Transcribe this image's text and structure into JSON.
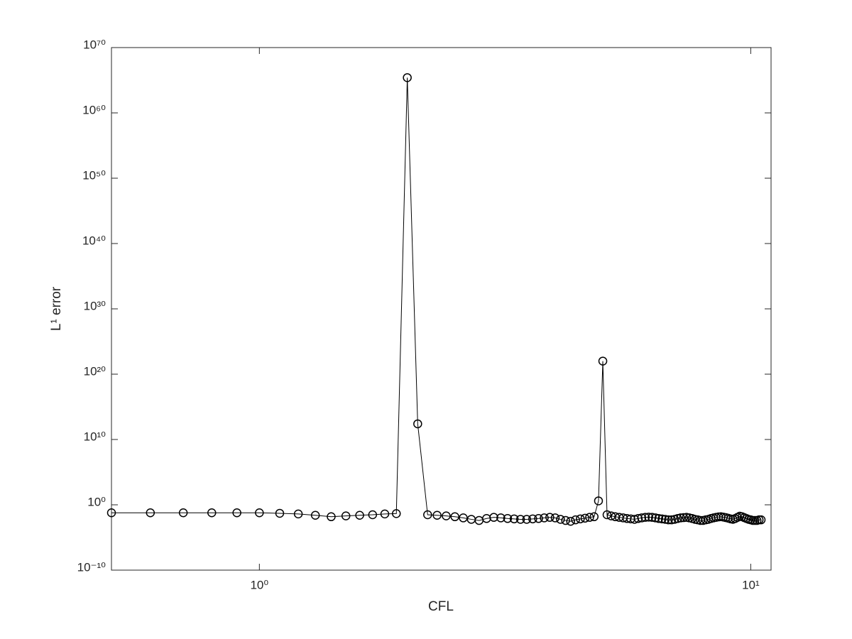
{
  "chart_data": {
    "type": "line",
    "xlabel": "CFL",
    "ylabel": "L¹ error",
    "xscale": "log",
    "yscale": "log",
    "color": "#000000",
    "marker": "o",
    "xlim": [
      0.5,
      11
    ],
    "ylim": [
      1e-10,
      1e+70
    ],
    "xticks": [
      {
        "value": 1,
        "label": "10⁰"
      },
      {
        "value": 10,
        "label": "10¹"
      }
    ],
    "yticks": [
      {
        "value": 1e-10,
        "label": "10⁻¹⁰"
      },
      {
        "value": 1,
        "label": "10⁰"
      },
      {
        "value": 10000000000.0,
        "label": "10¹⁰"
      },
      {
        "value": 1e+20,
        "label": "10²⁰"
      },
      {
        "value": 1e+30,
        "label": "10³⁰"
      },
      {
        "value": 1e+40,
        "label": "10⁴⁰"
      },
      {
        "value": 1e+50,
        "label": "10⁵⁰"
      },
      {
        "value": 1e+60,
        "label": "10⁶⁰"
      },
      {
        "value": 1e+70,
        "label": "10⁷⁰"
      }
    ],
    "x": [
      0.5,
      0.6,
      0.7,
      0.8,
      0.9,
      1.0,
      1.1,
      1.2,
      1.3,
      1.4,
      1.5,
      1.6,
      1.7,
      1.8,
      1.9,
      2.0,
      2.1,
      2.2,
      2.3,
      2.4,
      2.5,
      2.6,
      2.7,
      2.8,
      2.9,
      3.0,
      3.1,
      3.2,
      3.3,
      3.4,
      3.5,
      3.6,
      3.7,
      3.8,
      3.9,
      4.0,
      4.1,
      4.2,
      4.3,
      4.4,
      4.5,
      4.6,
      4.7,
      4.8,
      4.9,
      5.0,
      5.1,
      5.2,
      5.3,
      5.4,
      5.5,
      5.6,
      5.7,
      5.8,
      5.9,
      6.0,
      6.1,
      6.2,
      6.3,
      6.4,
      6.5,
      6.6,
      6.7,
      6.8,
      6.9,
      7.0,
      7.1,
      7.2,
      7.3,
      7.4,
      7.5,
      7.6,
      7.7,
      7.8,
      7.9,
      8.0,
      8.1,
      8.2,
      8.3,
      8.4,
      8.5,
      8.6,
      8.7,
      8.8,
      8.9,
      9.0,
      9.1,
      9.2,
      9.3,
      9.4,
      9.5,
      9.6,
      9.7,
      9.8,
      9.9,
      10.0,
      10.1,
      10.2,
      10.3,
      10.4,
      10.5
    ],
    "values": [
      0.06,
      0.06,
      0.06,
      0.06,
      0.06,
      0.06,
      0.05,
      0.04,
      0.025,
      0.015,
      0.02,
      0.025,
      0.03,
      0.04,
      0.045,
      2.5e+65,
      2500000000000.0,
      0.03,
      0.025,
      0.02,
      0.015,
      0.01,
      0.006,
      0.004,
      0.008,
      0.012,
      0.01,
      0.008,
      0.007,
      0.006,
      0.006,
      0.007,
      0.008,
      0.01,
      0.012,
      0.01,
      0.006,
      0.004,
      0.003,
      0.005,
      0.007,
      0.009,
      0.012,
      0.015,
      4,
      1e+22,
      0.03,
      0.02,
      0.015,
      0.012,
      0.01,
      0.008,
      0.007,
      0.006,
      0.008,
      0.01,
      0.012,
      0.013,
      0.012,
      0.01,
      0.008,
      0.007,
      0.006,
      0.005,
      0.005,
      0.006,
      0.008,
      0.01,
      0.011,
      0.012,
      0.01,
      0.008,
      0.006,
      0.005,
      0.004,
      0.004,
      0.005,
      0.006,
      0.008,
      0.01,
      0.012,
      0.014,
      0.015,
      0.013,
      0.011,
      0.009,
      0.007,
      0.006,
      0.008,
      0.012,
      0.018,
      0.015,
      0.011,
      0.008,
      0.006,
      0.005,
      0.004,
      0.004,
      0.004,
      0.005,
      0.005
    ]
  }
}
